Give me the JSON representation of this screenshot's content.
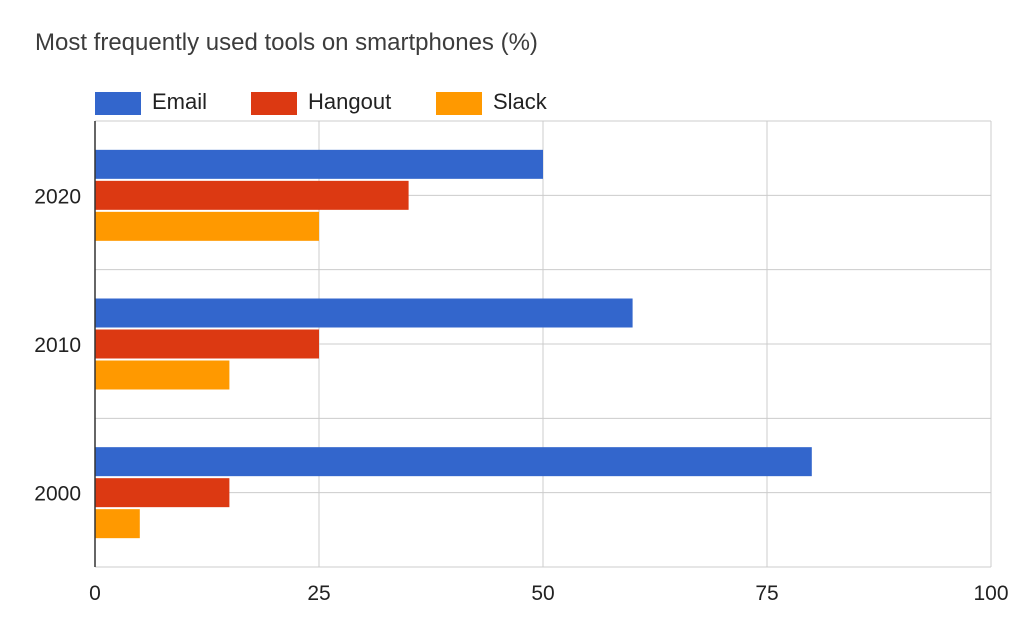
{
  "chart_data": {
    "type": "bar",
    "orientation": "horizontal",
    "title": "Most frequently used tools on smartphones (%)",
    "categories": [
      "2020",
      "2010",
      "2000"
    ],
    "series": [
      {
        "name": "Email",
        "color": "#3366cc",
        "values": [
          50,
          60,
          80
        ]
      },
      {
        "name": "Hangout",
        "color": "#dc3912",
        "values": [
          35,
          25,
          15
        ]
      },
      {
        "name": "Slack",
        "color": "#ff9900",
        "values": [
          25,
          15,
          5
        ]
      }
    ],
    "xlim": [
      0,
      100
    ],
    "x_ticks": [
      "0",
      "25",
      "50",
      "75",
      "100"
    ],
    "legend_position": "top-left",
    "grid": true
  }
}
